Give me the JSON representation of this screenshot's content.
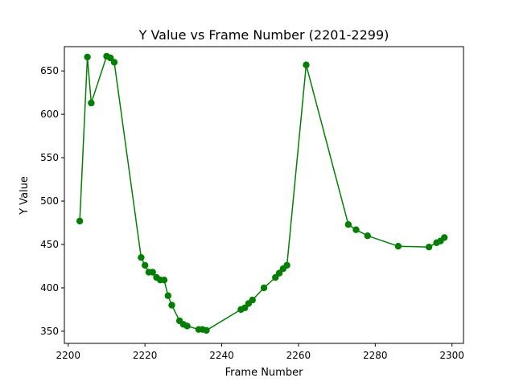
{
  "chart_data": {
    "type": "line",
    "title": "Y Value vs Frame Number (2201-2299)",
    "xlabel": "Frame Number",
    "ylabel": "Y Value",
    "xlim": [
      2199,
      2303
    ],
    "ylim": [
      336,
      678
    ],
    "xticks": [
      2200,
      2220,
      2240,
      2260,
      2280,
      2300
    ],
    "yticks": [
      350,
      400,
      450,
      500,
      550,
      600,
      650
    ],
    "grid": false,
    "legend": "none",
    "series": [
      {
        "color": "#008000",
        "marker": "circle",
        "x": [
          2203,
          2205,
          2206,
          2210,
          2211,
          2212,
          2219,
          2220,
          2221,
          2222,
          2223,
          2224,
          2225,
          2226,
          2227,
          2229,
          2230,
          2231,
          2234,
          2235,
          2236,
          2245,
          2246,
          2247,
          2248,
          2251,
          2254,
          2255,
          2256,
          2257,
          2262,
          2273,
          2275,
          2278,
          2286,
          2294,
          2296,
          2297,
          2298
        ],
        "y": [
          477,
          666,
          613,
          667,
          665,
          660,
          435,
          426,
          418,
          418,
          412,
          409,
          409,
          391,
          380,
          362,
          358,
          356,
          352,
          352,
          351,
          375,
          377,
          382,
          386,
          400,
          412,
          417,
          422,
          426,
          657,
          473,
          467,
          460,
          448,
          447,
          452,
          454,
          458
        ]
      }
    ]
  }
}
